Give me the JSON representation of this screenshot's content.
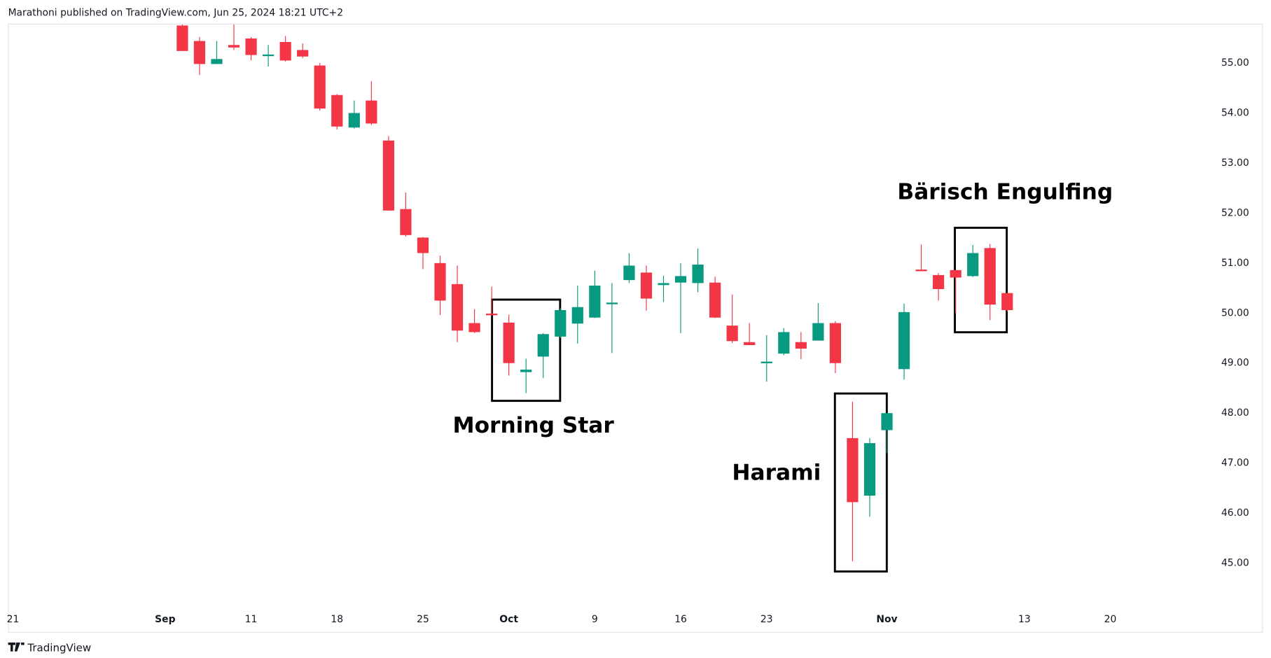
{
  "header": "Marathoni published on TradingView.com, Jun 25, 2024 18:21 UTC+2",
  "footer": "TradingView",
  "chart_data": {
    "type": "candlestick",
    "up_color": "#089981",
    "down_color": "#f23645",
    "x": [
      0,
      1,
      2,
      3,
      4,
      5,
      6,
      7,
      8,
      9,
      10,
      11,
      12,
      13,
      14,
      15,
      16,
      17,
      18,
      19,
      20,
      21,
      22,
      23,
      24,
      25,
      26,
      27,
      28,
      29,
      30,
      31,
      32,
      33,
      34,
      35,
      36,
      37,
      38,
      39,
      40,
      41,
      42,
      43,
      44,
      45,
      46,
      47,
      48
    ],
    "open": [
      55.75,
      55.44,
      54.98,
      55.36,
      55.49,
      55.15,
      55.42,
      55.26,
      54.95,
      54.36,
      53.71,
      54.25,
      53.45,
      52.08,
      51.51,
      51.0,
      50.58,
      49.8,
      49.99,
      49.81,
      48.82,
      49.13,
      49.53,
      49.79,
      49.91,
      50.19,
      50.66,
      50.81,
      50.56,
      50.61,
      50.6,
      50.61,
      49.75,
      49.42,
      49.02,
      49.19,
      49.42,
      49.45,
      49.8,
      47.5,
      46.35,
      47.66,
      48.88,
      50.87,
      50.76,
      50.86,
      50.74,
      51.3,
      50.4
    ],
    "high": [
      55.77,
      55.52,
      55.44,
      55.77,
      55.52,
      55.36,
      55.54,
      55.39,
      55.0,
      54.38,
      54.25,
      54.64,
      53.54,
      52.41,
      51.52,
      51.15,
      50.95,
      50.08,
      50.53,
      49.97,
      49.09,
      49.6,
      50.1,
      50.55,
      50.85,
      50.6,
      51.2,
      50.95,
      50.75,
      51.0,
      51.29,
      50.73,
      50.37,
      49.8,
      49.56,
      49.7,
      49.62,
      50.2,
      49.84,
      48.23,
      47.5,
      48.0,
      50.19,
      51.37,
      50.8,
      50.86,
      51.36,
      51.38,
      50.4
    ],
    "low": [
      55.24,
      54.76,
      54.98,
      55.26,
      55.05,
      54.93,
      55.03,
      55.1,
      54.05,
      53.67,
      53.69,
      53.76,
      52.05,
      51.53,
      50.88,
      49.96,
      49.42,
      49.6,
      49.96,
      48.75,
      48.4,
      48.7,
      49.5,
      49.39,
      49.9,
      49.2,
      50.6,
      50.05,
      50.22,
      49.6,
      50.42,
      49.9,
      49.4,
      49.36,
      48.63,
      49.16,
      49.08,
      49.45,
      48.8,
      45.04,
      45.93,
      47.2,
      48.67,
      50.84,
      50.25,
      50.0,
      50.72,
      49.86,
      50.03
    ],
    "close": [
      55.24,
      54.98,
      55.08,
      55.31,
      55.16,
      55.17,
      55.05,
      55.13,
      54.09,
      53.73,
      54.0,
      53.79,
      52.05,
      51.56,
      51.2,
      50.25,
      49.65,
      49.62,
      49.96,
      49.0,
      48.87,
      49.58,
      50.06,
      50.12,
      50.55,
      50.21,
      50.95,
      50.29,
      50.6,
      50.74,
      50.97,
      49.91,
      49.44,
      49.36,
      49.03,
      49.62,
      49.29,
      49.8,
      49.0,
      46.22,
      47.4,
      48.0,
      50.02,
      50.84,
      50.48,
      50.71,
      51.2,
      50.17,
      50.06
    ],
    "xlim": [
      -10.14,
      59.2
    ],
    "ylim": [
      44.1,
      55.77
    ],
    "xticks": [
      {
        "value": -10,
        "label": "21"
      },
      {
        "value": -1,
        "label": "Sep"
      },
      {
        "value": 4,
        "label": "11"
      },
      {
        "value": 9,
        "label": "18"
      },
      {
        "value": 14,
        "label": "25"
      },
      {
        "value": 19,
        "label": "Oct"
      },
      {
        "value": 24,
        "label": "9"
      },
      {
        "value": 29,
        "label": "16"
      },
      {
        "value": 34,
        "label": "23"
      },
      {
        "value": 41,
        "label": "Nov"
      },
      {
        "value": 49,
        "label": "13"
      },
      {
        "value": 54,
        "label": "20"
      }
    ],
    "yticks": [
      {
        "value": 45,
        "label": "45.00"
      },
      {
        "value": 46,
        "label": "46.00"
      },
      {
        "value": 47,
        "label": "47.00"
      },
      {
        "value": 48,
        "label": "48.00"
      },
      {
        "value": 49,
        "label": "49.00"
      },
      {
        "value": 50,
        "label": "50.00"
      },
      {
        "value": 51,
        "label": "51.00"
      },
      {
        "value": 52,
        "label": "52.00"
      },
      {
        "value": 53,
        "label": "53.00"
      },
      {
        "value": 54,
        "label": "54.00"
      },
      {
        "value": 55,
        "label": "55.00"
      }
    ],
    "annotations": [
      "Morning Star",
      "Harami",
      "Bärisch Engulfing"
    ]
  }
}
